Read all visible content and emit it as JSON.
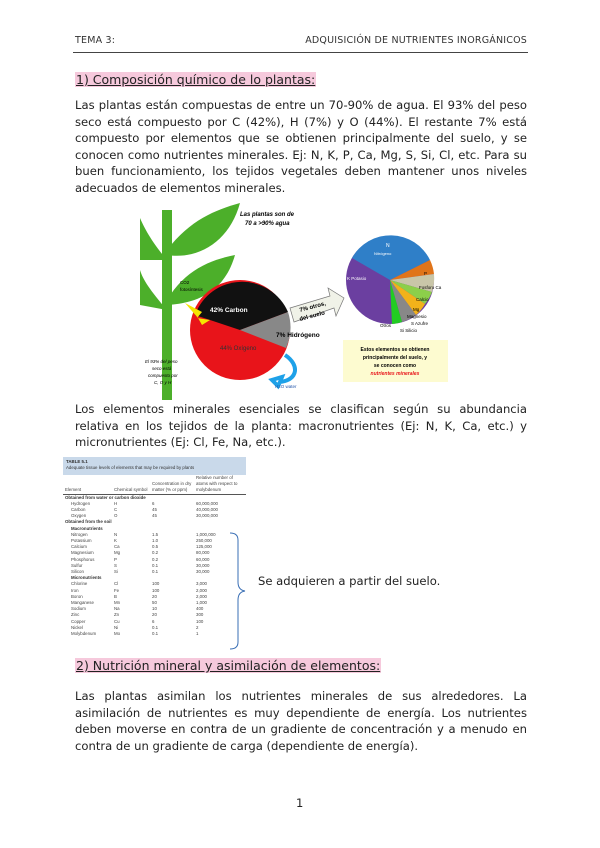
{
  "header": {
    "left": "TEMA 3:",
    "right": "ADQUISICIÓN DE NUTRIENTES INORGÁNICOS"
  },
  "section1": {
    "heading": "1) Composición químico de lo plantas:",
    "paragraph": "Las plantas están compuestas de entre un 70-90% de agua. El 93% del peso seco está compuesto por C (42%), H (7%) y O (44%). El restante 7% está compuesto por elementos que se obtienen principalmente del suelo, y se conocen como nutrientes minerales. Ej: N, K, P, Ca, Mg, S, Si, Cl, etc. Para su buen funcionamiento, los tejidos vegetales deben mantener unos niveles adecuados de elementos minerales."
  },
  "figure": {
    "water_note": [
      "Las plantas son de",
      "70 a >90% agua"
    ],
    "co2": [
      "CO2",
      "fotosíntesis"
    ],
    "carbon": "42% Carbon",
    "oxygen": "44% Oxígeno",
    "hydrogen": "7% Hidrógeno",
    "arrow": [
      "7% otros,",
      "del suelo"
    ],
    "dry_note": [
      "El 93% del peso",
      "seco está",
      "compuesto por",
      "C, O y H"
    ],
    "water_in": "H2O water",
    "pie_labels": {
      "n": "N",
      "n2": "Nitrógeno",
      "k": "K Potasio",
      "p": "P",
      "ca": "Fosforo Ca",
      "calcio": "Calcio",
      "mg": "Mg",
      "mag": "Magnesio",
      "s": "S Azufre",
      "si": "Si Silicio",
      "otros": "Otros"
    },
    "box": [
      "Estos elementos se obtienen",
      "principalmente del suelo, y",
      "se conocen como"
    ],
    "box_em": "nutrientes minerales",
    "colors": {
      "leaf": "#4caf2a",
      "carbon": "#111111",
      "oxygen": "#e8141a",
      "box": "#fdfbd0"
    }
  },
  "paragraph2": "Los elementos minerales esenciales se clasifican según su abundancia relativa en los tejidos de la planta: macronutrientes (Ej: N, K, Ca, etc.) y micronutrientes (Ej: Cl, Fe, Na, etc.).",
  "table": {
    "caption": "TABLE 5.1",
    "subtitle": "Adequate tissue levels of elements that may be required by plants",
    "headers": [
      "Element",
      "Chemical symbol",
      "Concentration in dry matter (% or ppm)",
      "Relative number of atoms with respect to molybdenum"
    ],
    "group1": "Obtained from water or carbon dioxide",
    "rows1": [
      [
        "Hydrogen",
        "H",
        "6",
        "60,000,000"
      ],
      [
        "Carbon",
        "C",
        "45",
        "40,000,000"
      ],
      [
        "Oxygen",
        "O",
        "45",
        "30,000,000"
      ]
    ],
    "group2": "Obtained from the soil",
    "macro": "Macronutrients",
    "rows2": [
      [
        "Nitrogen",
        "N",
        "1.5",
        "1,000,000"
      ],
      [
        "Potassium",
        "K",
        "1.0",
        "250,000"
      ],
      [
        "Calcium",
        "Ca",
        "0.5",
        "125,000"
      ],
      [
        "Magnesium",
        "Mg",
        "0.2",
        "80,000"
      ],
      [
        "Phosphorus",
        "P",
        "0.2",
        "60,000"
      ],
      [
        "Sulfur",
        "S",
        "0.1",
        "30,000"
      ],
      [
        "Silicon",
        "Si",
        "0.1",
        "30,000"
      ]
    ],
    "micro": "Micronutrients",
    "rows3": [
      [
        "Chlorine",
        "Cl",
        "100",
        "3,000"
      ],
      [
        "Iron",
        "Fe",
        "100",
        "2,000"
      ],
      [
        "Boron",
        "B",
        "20",
        "2,000"
      ],
      [
        "Manganese",
        "Mn",
        "50",
        "1,000"
      ],
      [
        "Sodium",
        "Na",
        "10",
        "400"
      ],
      [
        "Zinc",
        "Zn",
        "20",
        "300"
      ],
      [
        "Copper",
        "Cu",
        "6",
        "100"
      ],
      [
        "Nickel",
        "Ni",
        "0.1",
        "2"
      ],
      [
        "Molybdenum",
        "Mo",
        "0.1",
        "1"
      ]
    ]
  },
  "note": "Se adquieren a partir del suelo.",
  "section2": {
    "heading": "2) Nutrición mineral y asimilación de elementos:",
    "paragraph": "Las plantas asimilan los nutrientes minerales de sus alrededores. La asimilación de nutrientes es muy dependiente de energía. Los nutrientes deben moverse en contra de un gradiente de concentración y a menudo en contra de un gradiente de carga (dependiente de energía)."
  },
  "page_number": "1"
}
